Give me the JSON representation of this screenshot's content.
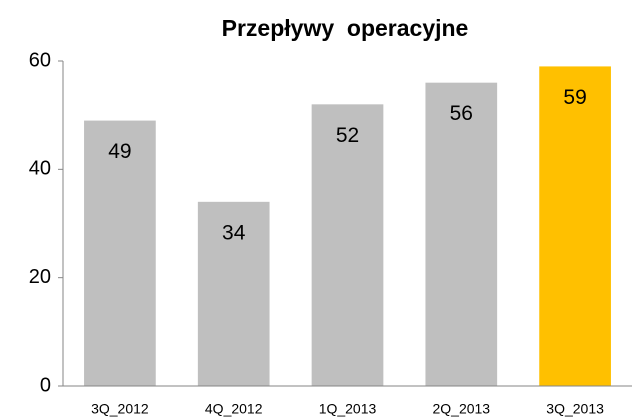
{
  "chart_data": {
    "type": "bar",
    "title": "Przepływy  operacyjne",
    "categories": [
      "3Q_2012",
      "4Q_2012",
      "1Q_2013",
      "2Q_2013",
      "3Q_2013"
    ],
    "values": [
      49,
      34,
      52,
      56,
      59
    ],
    "colors": [
      "#bfbfbf",
      "#bfbfbf",
      "#bfbfbf",
      "#bfbfbf",
      "#ffc000"
    ],
    "ylim": [
      0,
      60
    ],
    "yticks": [
      0,
      20,
      40,
      60
    ],
    "grid": false
  }
}
